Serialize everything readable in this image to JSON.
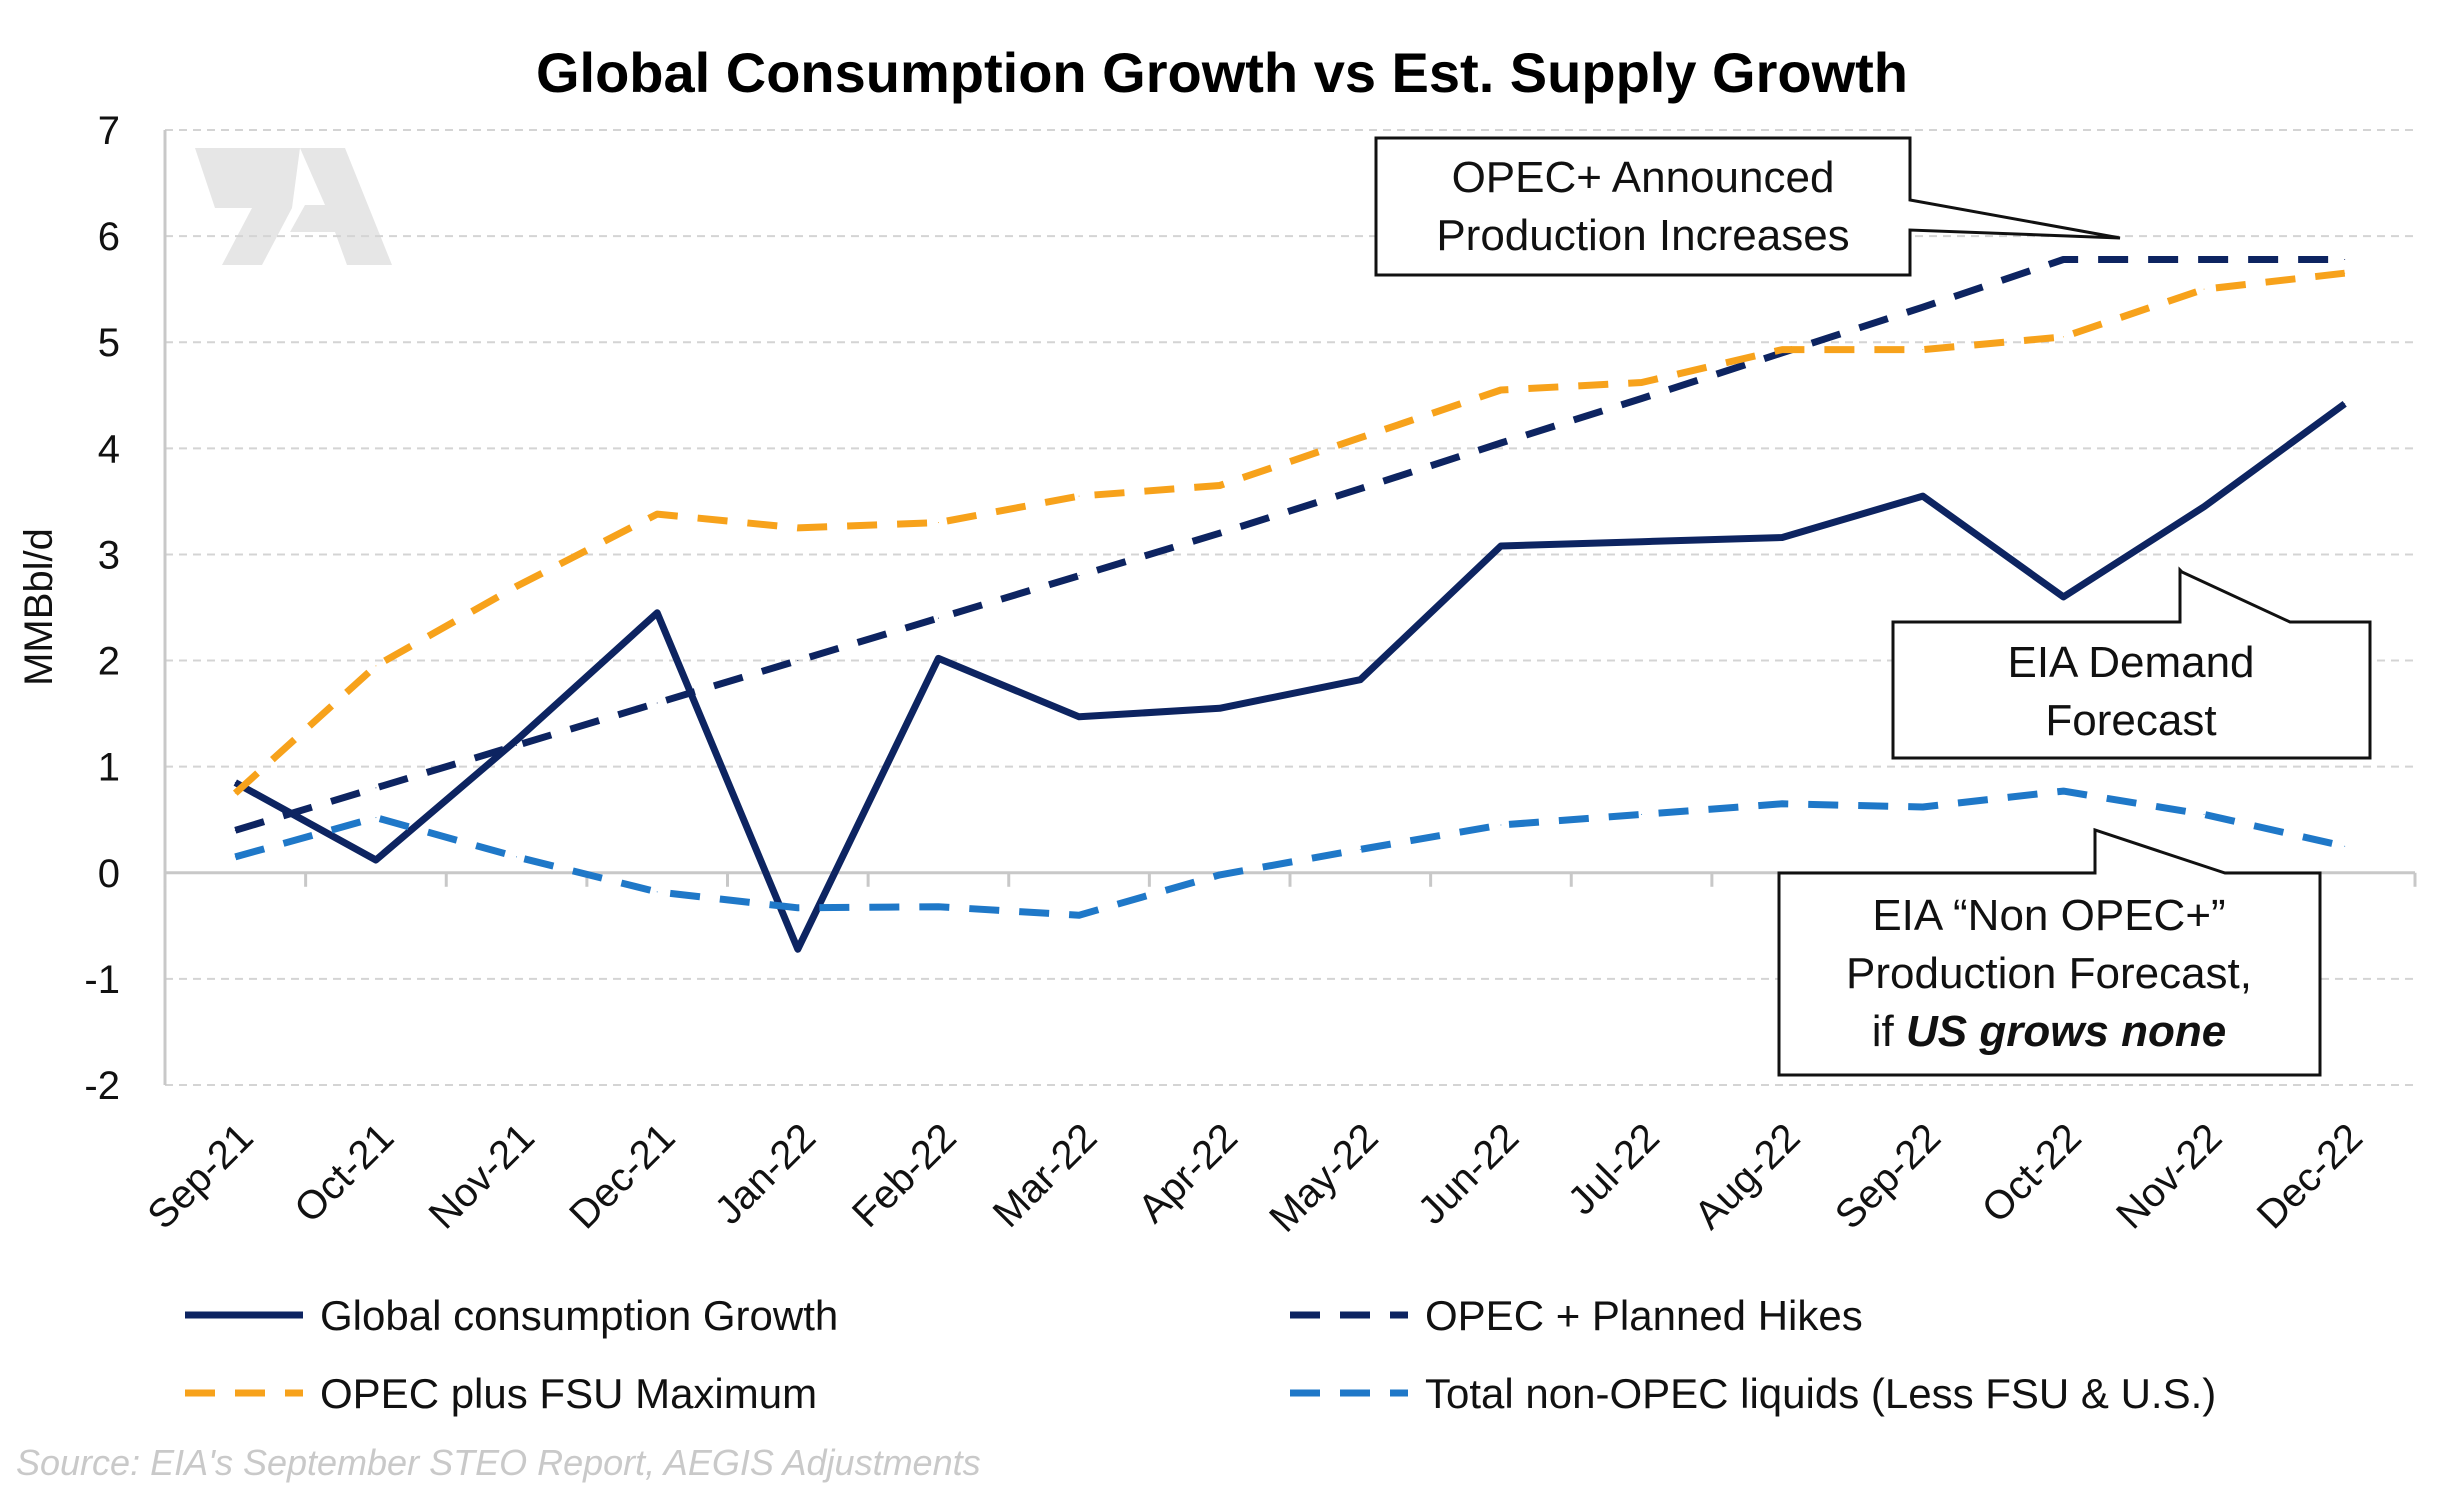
{
  "chart_data": {
    "type": "line",
    "title": "Global Consumption Growth vs Est. Supply Growth",
    "xlabel": "",
    "ylabel": "MMBbl/d",
    "ylim": [
      -2,
      7
    ],
    "yticks": [
      "7",
      "6",
      "5",
      "4",
      "3",
      "2",
      "1",
      "0",
      "-1",
      "-2"
    ],
    "grid": true,
    "legend_position": "bottom",
    "categories": [
      "Sep-21",
      "Oct-21",
      "Nov-21",
      "Dec-21",
      "Jan-22",
      "Feb-22",
      "Mar-22",
      "Apr-22",
      "May-22",
      "Jun-22",
      "Jul-22",
      "Aug-22",
      "Sep-22",
      "Oct-22",
      "Nov-22",
      "Dec-22"
    ],
    "series": [
      {
        "name": "Global consumption Growth",
        "color": "#0d2461",
        "style": "solid",
        "values": [
          0.85,
          0.12,
          1.25,
          2.45,
          -0.72,
          2.02,
          1.47,
          1.55,
          1.82,
          3.08,
          3.12,
          3.16,
          3.55,
          2.6,
          3.45,
          4.42
        ]
      },
      {
        "name": "OPEC + Planned Hikes",
        "color": "#0d2461",
        "style": "dashed",
        "values": [
          0.4,
          0.8,
          1.2,
          1.6,
          2.0,
          2.4,
          2.8,
          3.2,
          3.62,
          4.05,
          4.47,
          4.9,
          5.33,
          5.78,
          5.78,
          5.78
        ]
      },
      {
        "name": "OPEC plus FSU Maximum",
        "color": "#f7a21b",
        "style": "dashed",
        "values": [
          0.75,
          1.95,
          2.7,
          3.38,
          3.25,
          3.3,
          3.55,
          3.65,
          4.1,
          4.55,
          4.62,
          4.93,
          4.93,
          5.05,
          5.5,
          5.65
        ]
      },
      {
        "name": "Total non-OPEC liquids (Less FSU & U.S.)",
        "color": "#1f78c8",
        "style": "dashed",
        "values": [
          0.15,
          0.52,
          0.15,
          -0.18,
          -0.33,
          -0.32,
          -0.4,
          -0.02,
          0.22,
          0.45,
          0.55,
          0.65,
          0.62,
          0.77,
          0.55,
          0.25
        ]
      }
    ],
    "annotations": [
      {
        "lines": [
          "OPEC+ Announced",
          "Production Increases"
        ]
      },
      {
        "lines": [
          "EIA Demand",
          "Forecast"
        ]
      },
      {
        "lines": [
          "EIA “Non OPEC+”",
          "Production Forecast,"
        ],
        "last_prefix": "if ",
        "last_emphasis": "US grows none"
      }
    ],
    "source": "Source: EIA's September STEO Report, AEGIS Adjustments",
    "watermark": "AEGIS logo"
  }
}
